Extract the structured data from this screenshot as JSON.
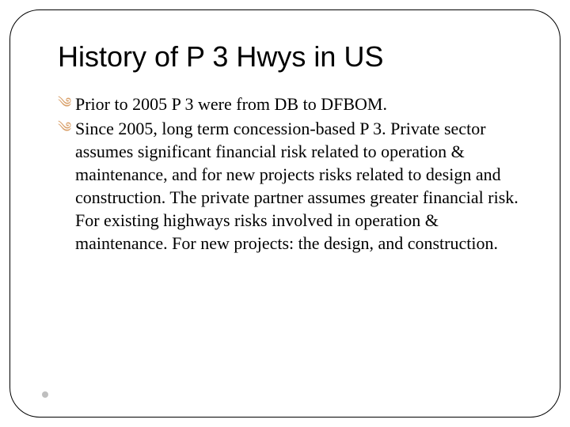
{
  "slide": {
    "title": "History of P 3 Hwys in US",
    "title_color": "#000000",
    "title_fontsize": 36,
    "bullet_color": "#d9a06a",
    "bullet_glyph": "⸳",
    "body_fontfamily": "Times New Roman",
    "body_fontsize": 22,
    "body_color": "#000000",
    "frame_border_color": "#000000",
    "frame_border_radius": 38,
    "background_color": "#ffffff",
    "footer_dot_color": "#bfbfbf",
    "bullets": [
      "Prior to 2005 P 3 were from DB to DFBOM.",
      "Since 2005, long term concession-based P 3.  Private sector assumes significant financial risk related to operation & maintenance, and for new projects risks related to design and construction.  The private partner assumes greater financial risk.  For existing highways risks involved in operation & maintenance.  For new projects: the design, and construction."
    ]
  }
}
